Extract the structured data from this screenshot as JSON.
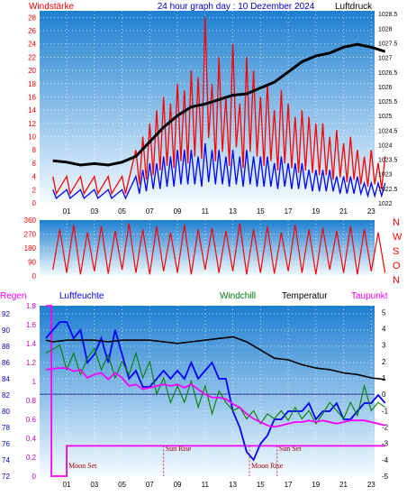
{
  "header": {
    "left_label": "Windstärke",
    "title": "24 hour graph day : 10 Dezember 2024",
    "right_label": "Luftdruck"
  },
  "colors": {
    "sky_top": "#1e7fd0",
    "sky_bottom": "#f4fbff",
    "wind_red": "#ff0000",
    "wind_blue": "#0000ff",
    "pressure": "#000000",
    "axis_red": "#ff0000",
    "humidity": "#0000ff",
    "windchill": "#008000",
    "temperature": "#000000",
    "dewpoint": "#ff00ff",
    "sun_moon": "#e0007a"
  },
  "chart_data": [
    {
      "type": "line",
      "title": "24 hour graph day : 10 Dezember 2024",
      "x_ticks": [
        "01",
        "03",
        "05",
        "07",
        "09",
        "11",
        "13",
        "15",
        "17",
        "19",
        "21",
        "23"
      ],
      "y_left": {
        "label": "Windstärke",
        "ticks": [
          0,
          2,
          4,
          6,
          8,
          10,
          12,
          14,
          16,
          18,
          20,
          22,
          24,
          26,
          28
        ],
        "lim": [
          0,
          29
        ]
      },
      "y_right": {
        "label": "Luftdruck",
        "ticks": [
          1022,
          1022.5,
          1023,
          1023.5,
          1024,
          1024.5,
          1025,
          1025.5,
          1026,
          1026.5,
          1027,
          1027.5,
          1028,
          1028.5
        ],
        "tick_labels": [
          "1022",
          "1022.5",
          "1023",
          "1023.5",
          "1024",
          "1024.5",
          "1025",
          "1025.5",
          "1026",
          "1026.5",
          "1027",
          "1027.5",
          "1028",
          "1028.5"
        ],
        "lim": [
          1022,
          1028.6
        ]
      },
      "grid": true,
      "series": [
        {
          "name": "Windstärke (Böen)",
          "color": "#ff0000",
          "x": [
            0,
            1,
            2,
            3,
            4,
            5,
            6,
            6.5,
            7,
            7.5,
            8,
            8.5,
            9,
            9.5,
            10,
            10.5,
            11,
            11.5,
            12,
            12.5,
            13,
            13.5,
            14,
            14.5,
            15,
            15.5,
            16,
            16.5,
            17,
            17.5,
            18,
            18.5,
            19,
            19.5,
            20,
            20.5,
            21,
            21.5,
            22,
            22.5,
            23,
            23.5,
            24
          ],
          "y": [
            4,
            4,
            4,
            4,
            4,
            4,
            8,
            10,
            12,
            14,
            16,
            15,
            18,
            17,
            20,
            19,
            28,
            18,
            22,
            16,
            24,
            15,
            22,
            20,
            16,
            18,
            14,
            17,
            15,
            13,
            14,
            13,
            12,
            12,
            10,
            11,
            9,
            10,
            8,
            7,
            8,
            6,
            7
          ]
        },
        {
          "name": "Windstärke (Mittel)",
          "color": "#0000ff",
          "x": [
            0,
            1,
            2,
            3,
            4,
            5,
            6,
            6.5,
            7,
            7.5,
            8,
            8.5,
            9,
            9.5,
            10,
            10.5,
            11,
            11.5,
            12,
            12.5,
            13,
            13.5,
            14,
            14.5,
            15,
            15.5,
            16,
            16.5,
            17,
            17.5,
            18,
            18.5,
            19,
            19.5,
            20,
            20.5,
            21,
            21.5,
            22,
            22.5,
            23,
            23.5,
            24
          ],
          "y": [
            2,
            2,
            2,
            2,
            2,
            2,
            4,
            5,
            6,
            6,
            7,
            7,
            8,
            8,
            8,
            7,
            9,
            8,
            8,
            7,
            8,
            7,
            8,
            7,
            7,
            7,
            6,
            7,
            6,
            6,
            6,
            5,
            5,
            5,
            5,
            4,
            4,
            4,
            4,
            3,
            3,
            3,
            3
          ]
        },
        {
          "name": "Luftdruck",
          "color": "#000000",
          "x": [
            0,
            1,
            2,
            3,
            4,
            5,
            6,
            7,
            8,
            9,
            10,
            11,
            12,
            13,
            14,
            15,
            16,
            17,
            18,
            19,
            20,
            21,
            22,
            23,
            24
          ],
          "y": [
            1023.45,
            1023.4,
            1023.3,
            1023.35,
            1023.3,
            1023.4,
            1023.6,
            1024.1,
            1024.6,
            1025.0,
            1025.3,
            1025.4,
            1025.55,
            1025.7,
            1025.75,
            1025.95,
            1026.15,
            1026.5,
            1026.85,
            1027.05,
            1027.15,
            1027.35,
            1027.45,
            1027.35,
            1027.2
          ]
        }
      ]
    },
    {
      "type": "line",
      "title": "",
      "x_ticks": [
        "01",
        "03",
        "05",
        "07",
        "09",
        "11",
        "13",
        "15",
        "17",
        "19",
        "21",
        "23"
      ],
      "y_left": {
        "ticks": [
          0,
          90,
          180,
          270,
          360
        ],
        "lim": [
          0,
          360
        ]
      },
      "y_right_labels": [
        "N",
        "W",
        "S",
        "O",
        "N"
      ],
      "grid": true,
      "series": [
        {
          "name": "Windrichtung",
          "color": "#ff0000",
          "x": [
            0,
            0.5,
            1,
            1.5,
            2,
            2.5,
            3,
            3.5,
            4,
            4.5,
            5,
            5.5,
            6,
            6.5,
            7,
            7.5,
            8,
            8.5,
            9,
            9.5,
            10,
            10.5,
            11,
            11.5,
            12,
            12.5,
            13,
            13.5,
            14,
            14.5,
            15,
            15.5,
            16,
            16.5,
            17,
            17.5,
            18,
            18.5,
            19,
            19.5,
            20,
            20.5,
            21,
            21.5,
            22,
            22.5,
            23,
            23.5,
            24
          ],
          "y": [
            40,
            300,
            20,
            330,
            10,
            280,
            30,
            320,
            15,
            290,
            40,
            340,
            20,
            300,
            10,
            320,
            30,
            280,
            20,
            330,
            10,
            300,
            40,
            310,
            20,
            290,
            30,
            340,
            10,
            300,
            20,
            320,
            15,
            280,
            30,
            330,
            20,
            300,
            10,
            310,
            40,
            290,
            20,
            320,
            10,
            300,
            30,
            280,
            20
          ]
        }
      ]
    },
    {
      "type": "line",
      "title": "",
      "x_ticks": [
        "01",
        "03",
        "05",
        "07",
        "09",
        "11",
        "13",
        "15",
        "17",
        "19",
        "21",
        "23"
      ],
      "header_labels": [
        "Regen",
        "Luftfeuchte",
        "Windchill",
        "Temperatur",
        "Taupunkt"
      ],
      "y_left_humidity": {
        "ticks": [
          72,
          74,
          76,
          78,
          80,
          82,
          84,
          86,
          88,
          90,
          92
        ],
        "lim": [
          72,
          93
        ]
      },
      "y_left_rain": {
        "ticks": [
          0,
          0.2,
          0.4,
          0.6,
          0.8,
          1,
          1.2,
          1.4,
          1.6,
          1.8
        ],
        "tick_labels": [
          "0",
          "0.2",
          "0.4",
          "0.6",
          "0.8",
          "1",
          "1.2",
          "1.4",
          "1.6",
          "1.8"
        ],
        "lim": [
          0,
          1.8
        ]
      },
      "y_right_temp": {
        "ticks": [
          -5,
          -4,
          -3,
          -2,
          -1,
          0,
          1,
          2,
          3,
          4,
          5
        ],
        "lim": [
          -5,
          5.4
        ]
      },
      "annotations": [
        {
          "text": "Moon Set",
          "x": 1.0
        },
        {
          "text": "Sun Rise",
          "x": 8.0
        },
        {
          "text": "Moon Rise",
          "x": 14.2
        },
        {
          "text": "Sun Set",
          "x": 16.2
        }
      ],
      "series": [
        {
          "name": "Regen",
          "color": "#ff00ff",
          "axis": "rain",
          "x": [
            -0.5,
            -0.1,
            -0.1,
            1.0,
            1.0,
            24
          ],
          "y": [
            1.8,
            1.8,
            0,
            0,
            0.32,
            0.32
          ]
        },
        {
          "name": "Luftfeuchte",
          "color": "#0000ff",
          "axis": "humidity",
          "x": [
            -0.5,
            0.5,
            1,
            1.5,
            2,
            2.5,
            3,
            3.5,
            4,
            4.5,
            5,
            5.5,
            6,
            6.5,
            7,
            7.5,
            8,
            8.5,
            9,
            9.5,
            10,
            10.5,
            11,
            11.5,
            12,
            12.5,
            13,
            13.5,
            14,
            14.5,
            15,
            15.5,
            16,
            16.5,
            17,
            17.5,
            18,
            18.5,
            19,
            19.5,
            20,
            20.5,
            21,
            21.5,
            22,
            22.5,
            23,
            23.5,
            24
          ],
          "y": [
            89,
            91,
            91,
            89,
            90,
            86,
            87,
            89,
            86,
            90,
            87,
            84,
            85,
            83,
            83,
            84,
            85,
            84,
            85,
            84,
            86,
            84,
            85,
            86,
            84,
            84,
            80,
            78,
            75,
            74,
            76,
            77,
            79,
            79,
            80,
            80,
            80,
            81,
            79,
            80,
            80,
            81,
            79,
            79,
            80,
            81,
            81,
            82,
            81
          ]
        },
        {
          "name": "Temperatur",
          "color": "#000000",
          "axis": "temp",
          "x": [
            -0.5,
            0,
            1,
            2,
            3,
            4,
            5,
            6,
            7,
            8,
            9,
            10,
            11,
            12,
            13,
            14,
            15,
            16,
            17,
            18,
            19,
            20,
            21,
            22,
            23,
            24
          ],
          "y": [
            3.3,
            3.2,
            3.3,
            3.3,
            3.3,
            3.2,
            3.3,
            3.3,
            3.3,
            3.2,
            3.1,
            3.2,
            3.3,
            3.4,
            3.5,
            3.2,
            2.7,
            2.2,
            2.1,
            1.8,
            1.6,
            1.5,
            1.3,
            1.2,
            1.0,
            0.9
          ]
        },
        {
          "name": "Windchill",
          "color": "#008000",
          "axis": "temp",
          "x": [
            -0.5,
            0.5,
            1,
            1.5,
            2,
            2.5,
            3,
            3.5,
            4,
            4.5,
            5,
            5.5,
            6,
            6.5,
            7,
            7.5,
            8,
            8.5,
            9,
            9.5,
            10,
            10.5,
            11,
            11.5,
            12,
            12.5,
            13,
            13.5,
            14,
            14.5,
            15,
            15.5,
            16,
            16.5,
            17,
            17.5,
            18,
            18.5,
            19,
            19.5,
            20,
            20.5,
            21,
            21.5,
            22,
            22.5,
            23,
            23.5,
            24
          ],
          "y": [
            2.5,
            3.0,
            1.5,
            2.5,
            1.2,
            2.2,
            2.8,
            1.5,
            2.4,
            1.0,
            2.0,
            1.2,
            2.5,
            1.0,
            2.0,
            0,
            1.0,
            -0.5,
            0.5,
            -0.5,
            0.8,
            -0.8,
            0.5,
            -1.2,
            0.2,
            -0.5,
            -1.0,
            -0.8,
            -1.5,
            -1.0,
            -1.8,
            -1.2,
            -1.5,
            -1.0,
            -1.6,
            -0.8,
            -1.5,
            -1.0,
            -1.8,
            -1.2,
            -0.5,
            -1.0,
            -1.5,
            -0.5,
            -1.3,
            0.5,
            -1.0,
            -0.5,
            -0.8
          ]
        },
        {
          "name": "Taupunkt",
          "color": "#ff00ff",
          "axis": "temp",
          "x": [
            -0.5,
            0.5,
            1,
            1.5,
            2,
            2.5,
            3,
            3.5,
            4,
            4.5,
            5,
            5.5,
            6,
            6.5,
            7,
            7.5,
            8,
            8.5,
            9,
            9.5,
            10,
            10.5,
            11,
            11.5,
            12,
            12.5,
            13,
            13.5,
            14,
            14.5,
            15,
            15.5,
            16,
            16.5,
            17,
            17.5,
            18,
            18.5,
            19,
            19.5,
            20,
            20.5,
            21,
            21.5,
            22,
            22.5,
            23,
            23.5,
            24
          ],
          "y": [
            1.5,
            1.6,
            1.6,
            1.4,
            1.5,
            1.0,
            1.2,
            1.3,
            0.9,
            1.3,
            1.0,
            0.5,
            0.6,
            0.3,
            0.4,
            0.5,
            0.6,
            0.5,
            0.6,
            0.4,
            0.6,
            0.3,
            0.0,
            -0.2,
            -0.2,
            -0.3,
            -0.6,
            -0.8,
            -1.2,
            -1.5,
            -1.7,
            -1.9,
            -2.0,
            -1.9,
            -1.8,
            -1.7,
            -1.7,
            -1.6,
            -1.7,
            -1.6,
            -1.7,
            -1.8,
            -1.7,
            -1.6,
            -1.6,
            -1.6,
            -1.7,
            -1.8,
            -1.9
          ]
        }
      ]
    }
  ]
}
